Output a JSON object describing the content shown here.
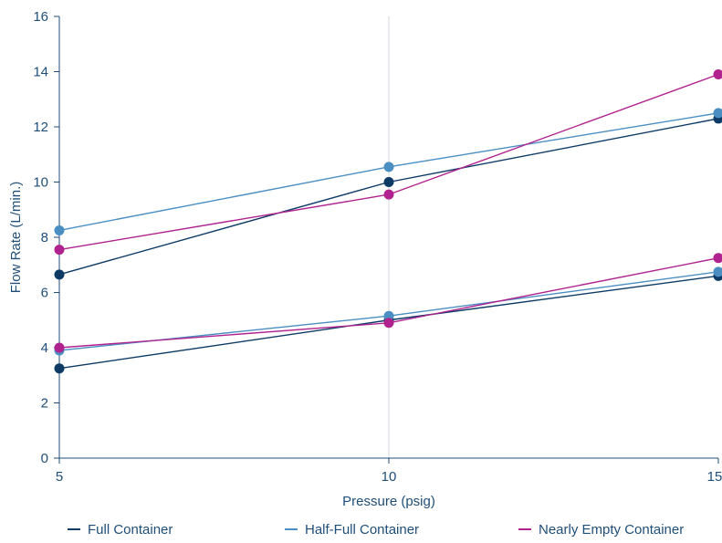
{
  "chart_data": {
    "type": "line",
    "title": "",
    "xlabel": "Pressure (psig)",
    "ylabel": "Flow Rate (L/min.)",
    "xlim": [
      5,
      15
    ],
    "ylim": [
      0,
      16
    ],
    "x_ticks": [
      5,
      10,
      15
    ],
    "y_ticks": [
      0,
      2,
      4,
      6,
      8,
      10,
      12,
      14,
      16
    ],
    "grid": "vertical",
    "legend_position": "bottom",
    "x": [
      5,
      10,
      15
    ],
    "series": [
      {
        "name": "Full Container",
        "color": "#0d3b66",
        "groups": [
          [
            6.65,
            10.0,
            12.3
          ],
          [
            3.25,
            5.0,
            6.6
          ]
        ]
      },
      {
        "name": "Half-Full Container",
        "color": "#4a8ec2",
        "groups": [
          [
            8.25,
            10.55,
            12.5
          ],
          [
            3.9,
            5.15,
            6.75
          ]
        ]
      },
      {
        "name": "Nearly Empty Container",
        "color": "#b0238f",
        "groups": [
          [
            7.55,
            9.55,
            13.9
          ],
          [
            4.0,
            4.9,
            7.25
          ]
        ]
      }
    ]
  }
}
